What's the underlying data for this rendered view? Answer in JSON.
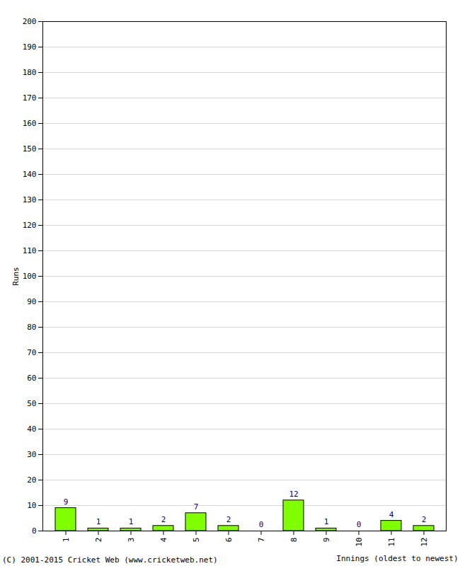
{
  "chart_data": {
    "type": "bar",
    "categories": [
      "1",
      "2",
      "3",
      "4",
      "5",
      "6",
      "7",
      "8",
      "9",
      "10",
      "11",
      "12"
    ],
    "values": [
      9,
      1,
      1,
      2,
      7,
      2,
      0,
      12,
      1,
      0,
      4,
      2
    ],
    "color": "#80ff00",
    "x_label": "Innings (oldest to newest)",
    "y_label": "Runs",
    "caption": "(C) 2001-2015 Cricket Web (www.cricketweb.net)",
    "ylim": [
      0,
      200
    ],
    "yticks": [
      0,
      10,
      20,
      30,
      40,
      50,
      60,
      70,
      80,
      90,
      100,
      110,
      120,
      130,
      140,
      150,
      160,
      170,
      180,
      190,
      200
    ],
    "grid": true,
    "data_labels": true
  }
}
